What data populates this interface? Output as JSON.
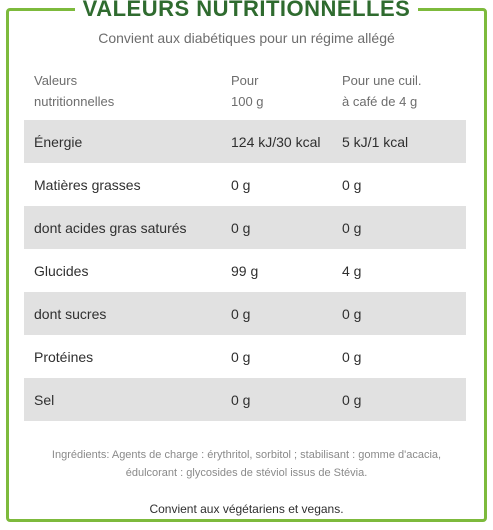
{
  "title": "VALEURS NUTRITIONNELLES",
  "subtitle": "Convient aux diabétiques pour un régime allégé",
  "header": {
    "col1_line1": "Valeurs",
    "col1_line2": "nutritionnelles",
    "col2_line1": "Pour",
    "col2_line2": "100 g",
    "col3_line1": "Pour une cuil.",
    "col3_line2": "à café de 4 g"
  },
  "rows": [
    {
      "name": "Énergie",
      "per100": "124 kJ/30 kcal",
      "perSpoon": "5 kJ/1 kcal"
    },
    {
      "name": "Matières grasses",
      "per100": "0 g",
      "perSpoon": "0 g"
    },
    {
      "name": "dont acides gras saturés",
      "per100": "0 g",
      "perSpoon": "0 g"
    },
    {
      "name": "Glucides",
      "per100": "99 g",
      "perSpoon": "4 g"
    },
    {
      "name": "dont sucres",
      "per100": "0 g",
      "perSpoon": "0 g"
    },
    {
      "name": "Protéines",
      "per100": "0 g",
      "perSpoon": "0 g"
    },
    {
      "name": "Sel",
      "per100": "0 g",
      "perSpoon": "0 g"
    }
  ],
  "ingredients_line1": "Ingrédients: Agents de charge : érythritol, sorbitol ; stabilisant : gomme d'acacia,",
  "ingredients_line2": "édulcorant : glycosides de stéviol issus de Stévia.",
  "footer": "Convient aux végétariens et vegans.",
  "colors": {
    "border": "#7dba3c",
    "title": "#2f6b2f",
    "shade": "#e1e1e1"
  }
}
